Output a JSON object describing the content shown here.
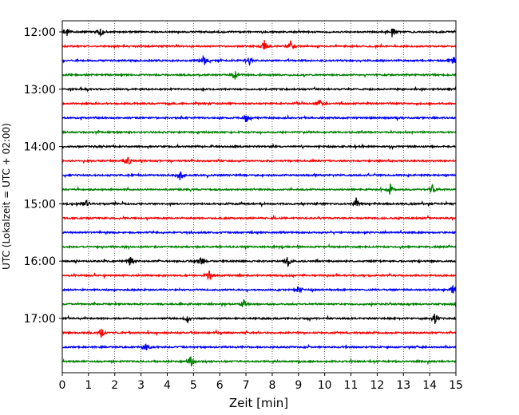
{
  "chart_data": {
    "type": "line",
    "title": "",
    "xlabel": "Zeit  [min]",
    "ylabel": "UTC (Lokalzeit = UTC + 02:00)",
    "xlim": [
      0,
      15
    ],
    "x_ticks": [
      "0",
      "1",
      "2",
      "3",
      "4",
      "5",
      "6",
      "7",
      "8",
      "9",
      "10",
      "11",
      "12",
      "13",
      "14",
      "15"
    ],
    "y_ticks": [
      "12:00",
      "13:00",
      "14:00",
      "15:00",
      "16:00",
      "17:00"
    ],
    "grid": "vertical dotted at each minute",
    "trace_interval_minutes": 15,
    "trace_start": "12:00",
    "trace_count": 24,
    "color_cycle": [
      "#000000",
      "#ff0000",
      "#0000ff",
      "#008000"
    ],
    "events": [
      {
        "trace": 0,
        "minutes": [
          0.15,
          1.45,
          12.6
        ]
      },
      {
        "trace": 1,
        "minutes": [
          7.7,
          8.7
        ]
      },
      {
        "trace": 2,
        "minutes": [
          5.4,
          7.1,
          14.9
        ]
      },
      {
        "trace": 3,
        "minutes": [
          6.6
        ]
      },
      {
        "trace": 5,
        "minutes": [
          9.8
        ]
      },
      {
        "trace": 6,
        "minutes": [
          7.0
        ]
      },
      {
        "trace": 9,
        "minutes": [
          2.5
        ]
      },
      {
        "trace": 10,
        "minutes": [
          4.5
        ]
      },
      {
        "trace": 11,
        "minutes": [
          12.5,
          14.1
        ]
      },
      {
        "trace": 12,
        "minutes": [
          0.9,
          11.2
        ]
      },
      {
        "trace": 16,
        "minutes": [
          2.6,
          5.3,
          8.6
        ]
      },
      {
        "trace": 17,
        "minutes": [
          5.6
        ]
      },
      {
        "trace": 18,
        "minutes": [
          9.0,
          14.9
        ]
      },
      {
        "trace": 19,
        "minutes": [
          6.9
        ]
      },
      {
        "trace": 20,
        "minutes": [
          4.8,
          14.2
        ]
      },
      {
        "trace": 21,
        "minutes": [
          1.5
        ]
      },
      {
        "trace": 22,
        "minutes": [
          3.2
        ]
      },
      {
        "trace": 23,
        "minutes": [
          4.9
        ]
      }
    ]
  }
}
